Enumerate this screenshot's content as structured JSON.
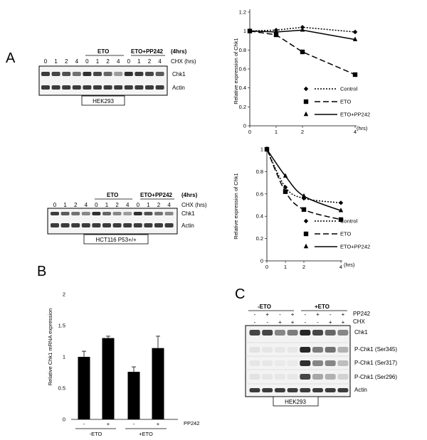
{
  "panels": {
    "A": "A",
    "B": "B",
    "C": "C"
  },
  "blot_top": {
    "group_eto": "ETO",
    "group_eto_pp242": "ETO+PP242",
    "duration": "(4hrs)",
    "cx_label": "CHX (hrs)",
    "time_labels": [
      "0",
      "1",
      "2",
      "4",
      "0",
      "1",
      "2",
      "4",
      "0",
      "1",
      "2",
      "4"
    ],
    "rows": [
      "Chk1",
      "Actin"
    ],
    "cell_line": "HEK293"
  },
  "blot_mid": {
    "group_eto": "ETO",
    "group_eto_pp242": "ETO+PP242",
    "duration": "(4hrs)",
    "cx_label": "CHX (hrs)",
    "time_labels": [
      "0",
      "1",
      "2",
      "4",
      "0",
      "1",
      "2",
      "4",
      "0",
      "1",
      "2",
      "4"
    ],
    "rows": [
      "Chk1",
      "Actin"
    ],
    "cell_line": "HCT116 P53+/+"
  },
  "chart_data": [
    {
      "type": "line",
      "ylabel": "Relative expression of Chk1",
      "xlabel": "",
      "x_unit_label": "(hrs)",
      "x": [
        0,
        1,
        2,
        4
      ],
      "xticks": [
        "0",
        "1",
        "2",
        "4"
      ],
      "ylim": [
        0,
        1.2
      ],
      "yticks": [
        "0",
        "0.2",
        "0.4",
        "0.6",
        "0.8",
        "1",
        "1.2"
      ],
      "legend": "right",
      "series": [
        {
          "name": "Control",
          "values": [
            1.0,
            1.01,
            1.04,
            0.99
          ]
        },
        {
          "name": "ETO",
          "values": [
            1.0,
            0.96,
            0.78,
            0.54
          ]
        },
        {
          "name": "ETO+PP242",
          "values": [
            1.0,
            0.99,
            1.01,
            0.91
          ]
        }
      ]
    },
    {
      "type": "line",
      "ylabel": "Relative expression of Chk1",
      "xlabel": "",
      "x_unit_label": "(hrs)",
      "x": [
        0,
        1,
        2,
        4
      ],
      "xticks": [
        "0",
        "1",
        "2",
        "4"
      ],
      "ylim": [
        0,
        1
      ],
      "yticks": [
        "0",
        "0.2",
        "0.4",
        "0.6",
        "0.8",
        "1"
      ],
      "legend": "right",
      "series": [
        {
          "name": "Control",
          "values": [
            1.0,
            0.66,
            0.56,
            0.52
          ]
        },
        {
          "name": "ETO",
          "values": [
            1.0,
            0.62,
            0.46,
            0.37
          ]
        },
        {
          "name": "ETO+PP242",
          "values": [
            1.0,
            0.76,
            0.58,
            0.45
          ]
        }
      ]
    },
    {
      "type": "bar",
      "ylabel": "Relative Chk1 mRNA expression",
      "xlabel": "",
      "categories": [
        "-",
        "+",
        "-",
        "+"
      ],
      "groups": [
        "-ETO",
        "+ETO"
      ],
      "group_row_label": "PP242",
      "values": [
        1.0,
        1.3,
        0.76,
        1.14
      ],
      "errors": [
        0.09,
        0.03,
        0.08,
        0.19
      ],
      "ylim": [
        0,
        2
      ],
      "yticks": [
        "0",
        "0.5",
        "1",
        "1.5",
        "2"
      ]
    }
  ],
  "blot_c": {
    "group_minus_eto": "-ETO",
    "group_plus_eto": "+ETO",
    "pp242_label": "PP242",
    "chx_label": "CHX",
    "pp242_signs": [
      "-",
      "+",
      "-",
      "+",
      "-",
      "+",
      "-",
      "+"
    ],
    "chx_signs": [
      "-",
      "-",
      "+",
      "+",
      "-",
      "-",
      "+",
      "+"
    ],
    "rows": [
      "Chk1",
      "P-Chk1 (Ser345)",
      "P-Chk1 (Ser317)",
      "P-Chk1 (Ser296)",
      "Actin"
    ],
    "cell_line": "HEK293"
  }
}
